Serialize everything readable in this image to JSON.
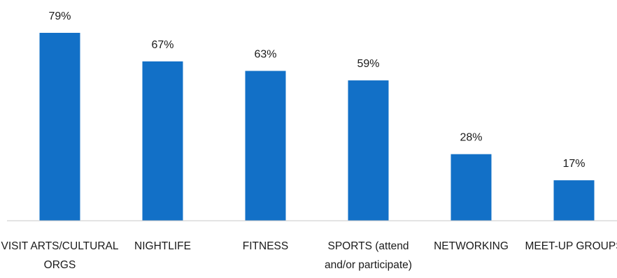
{
  "chart_data": {
    "type": "bar",
    "categories": [
      [
        "VISIT ARTS/CULTURAL",
        "ORGS"
      ],
      [
        "NIGHTLIFE"
      ],
      [
        "FITNESS"
      ],
      [
        "SPORTS (attend",
        "and/or participate)"
      ],
      [
        "NETWORKING"
      ],
      [
        "MEET-UP GROUPS"
      ]
    ],
    "values": [
      79,
      67,
      63,
      59,
      28,
      17
    ],
    "data_labels": [
      "79%",
      "67%",
      "63%",
      "59%",
      "28%",
      "17%"
    ],
    "ylim": [
      0,
      79
    ],
    "grid": false,
    "legend": "none",
    "bar_color": "#1270c7",
    "axis_color": "#c8c8c8"
  }
}
